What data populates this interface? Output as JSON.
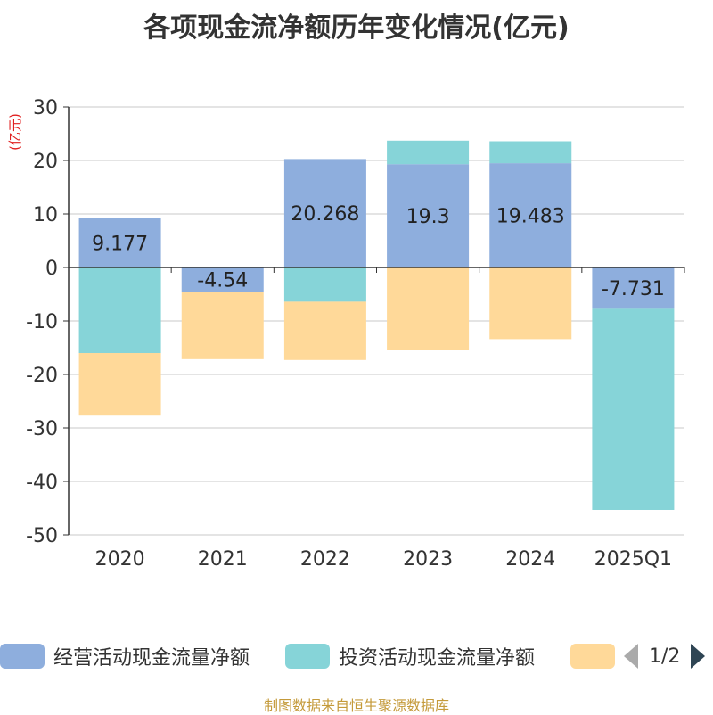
{
  "chart_data": {
    "type": "bar",
    "stacked": true,
    "title": "各项现金流净额历年变化情况(亿元)",
    "ylabel": "(亿元)",
    "categories": [
      "2020",
      "2021",
      "2022",
      "2023",
      "2024",
      "2025Q1"
    ],
    "ylim": [
      -50,
      30
    ],
    "yticks": [
      30,
      20,
      10,
      0,
      -10,
      -20,
      -30,
      -40,
      -50
    ],
    "grid": true,
    "legend_position": "bottom",
    "series": [
      {
        "name": "经营活动现金流量净额",
        "color": "#8eaedd",
        "values": [
          9.177,
          -4.54,
          20.268,
          19.3,
          19.483,
          -7.731
        ],
        "labels": [
          "9.177",
          "-4.54",
          "20.268",
          "19.3",
          "19.483",
          "-7.731"
        ]
      },
      {
        "name": "投资活动现金流量净额",
        "color": "#86d4d8",
        "values": [
          -16.0,
          0,
          -6.4,
          4.4,
          4.1,
          -37.6
        ]
      },
      {
        "name": "",
        "color": "#ffd999",
        "values": [
          -11.7,
          -12.6,
          -10.9,
          -15.5,
          -13.4,
          0
        ]
      }
    ]
  },
  "legend": {
    "items": [
      {
        "label": "经营活动现金流量净额",
        "color": "#8eaedd"
      },
      {
        "label": "投资活动现金流量净额",
        "color": "#86d4d8"
      },
      {
        "label": "",
        "color": "#ffd999"
      }
    ],
    "page": "1/2"
  },
  "source": "制图数据来自恒生聚源数据库"
}
